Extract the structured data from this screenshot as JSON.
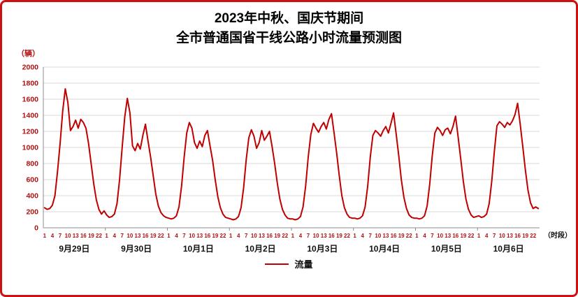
{
  "title": {
    "line1": "2023年中秋、国庆节期间",
    "line2": "全市普通国省干线公路小时流量预测图"
  },
  "axes": {
    "y_unit": "（辆）",
    "x_unit": "（时段）"
  },
  "legend": {
    "series_label": "流量"
  },
  "colors": {
    "line": "#c00000",
    "axis_text": "#b01010",
    "date_text": "#111111",
    "grid": "#d9d9d9",
    "axis_line": "#8c8c8c",
    "border": "#cc1111"
  },
  "chart_data": {
    "type": "line",
    "title": "2023年中秋、国庆节期间全市普通国省干线公路小时流量预测图",
    "ylabel": "（辆）",
    "xlabel": "（时段）",
    "ylim": [
      0,
      2000
    ],
    "y_ticks": [
      0,
      200,
      400,
      600,
      800,
      1000,
      1200,
      1400,
      1600,
      1800,
      2000
    ],
    "hour_ticks": [
      1,
      4,
      7,
      10,
      13,
      16,
      19,
      22
    ],
    "grid": true,
    "legend_position": "bottom",
    "series_name": "流量",
    "days": [
      {
        "date": "9月29日",
        "values": [
          250,
          230,
          240,
          280,
          400,
          700,
          1050,
          1450,
          1730,
          1560,
          1210,
          1260,
          1340,
          1240,
          1350,
          1310,
          1240,
          1050,
          800,
          550,
          350,
          230,
          170,
          210
        ]
      },
      {
        "date": "9月30日",
        "values": [
          160,
          130,
          140,
          170,
          300,
          600,
          1000,
          1380,
          1610,
          1430,
          1020,
          960,
          1050,
          980,
          1150,
          1290,
          1080,
          880,
          650,
          420,
          270,
          190,
          150,
          130
        ]
      },
      {
        "date": "10月1日",
        "values": [
          120,
          110,
          120,
          150,
          260,
          520,
          880,
          1180,
          1310,
          1240,
          1060,
          990,
          1080,
          1010,
          1150,
          1210,
          1020,
          840,
          600,
          390,
          250,
          170,
          130,
          120
        ]
      },
      {
        "date": "10月2日",
        "values": [
          110,
          100,
          110,
          140,
          250,
          500,
          850,
          1120,
          1220,
          1140,
          990,
          1060,
          1210,
          1090,
          1140,
          1200,
          1010,
          800,
          560,
          360,
          230,
          160,
          120,
          110
        ]
      },
      {
        "date": "10月3日",
        "values": [
          110,
          100,
          110,
          140,
          260,
          520,
          880,
          1160,
          1300,
          1240,
          1190,
          1260,
          1310,
          1230,
          1350,
          1420,
          1180,
          930,
          650,
          400,
          250,
          170,
          130,
          120
        ]
      },
      {
        "date": "10月4日",
        "values": [
          120,
          110,
          120,
          150,
          260,
          520,
          880,
          1150,
          1210,
          1180,
          1140,
          1210,
          1260,
          1180,
          1300,
          1430,
          1170,
          900,
          600,
          380,
          240,
          160,
          130,
          120
        ]
      },
      {
        "date": "10月5日",
        "values": [
          120,
          110,
          120,
          150,
          270,
          540,
          900,
          1180,
          1250,
          1210,
          1150,
          1220,
          1240,
          1170,
          1260,
          1390,
          1130,
          860,
          580,
          360,
          230,
          160,
          130,
          140
        ]
      },
      {
        "date": "10月6日",
        "values": [
          150,
          130,
          140,
          170,
          300,
          580,
          950,
          1270,
          1320,
          1290,
          1250,
          1310,
          1280,
          1330,
          1410,
          1550,
          1290,
          1010,
          720,
          470,
          310,
          240,
          260,
          240
        ]
      }
    ]
  }
}
